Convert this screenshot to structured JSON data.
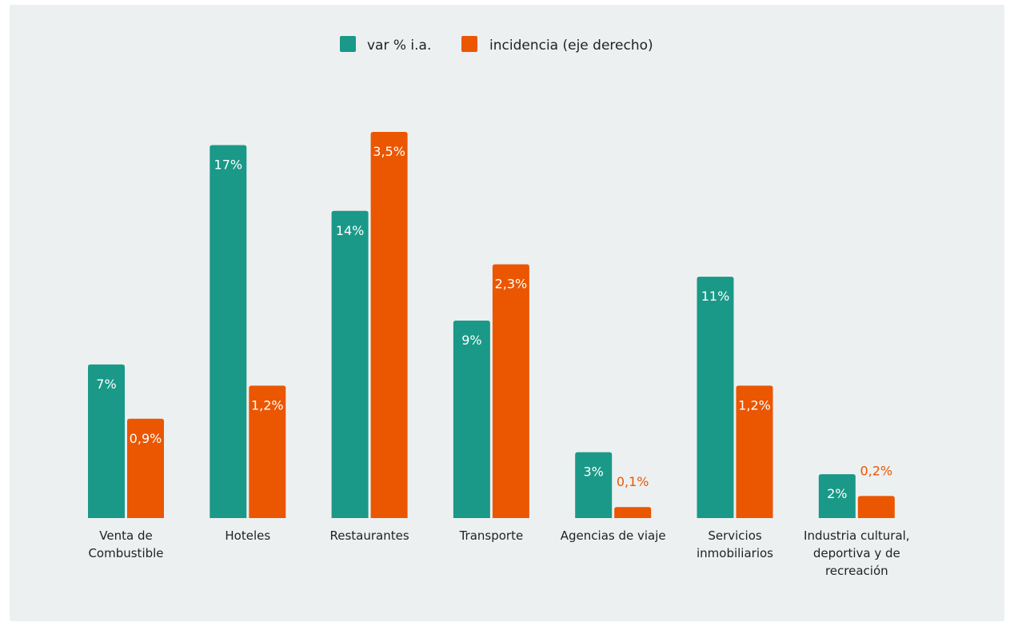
{
  "chart_data": {
    "type": "bar",
    "categories": [
      [
        "Venta de",
        "Combustible"
      ],
      [
        "Hoteles"
      ],
      [
        "Restaurantes"
      ],
      [
        "Transporte"
      ],
      [
        "Agencias de viaje"
      ],
      [
        "Servicios",
        "inmobiliarios"
      ],
      [
        "Industria cultural,",
        "deportiva y de",
        "recreación"
      ]
    ],
    "series": [
      {
        "name": "var % i.a.",
        "axis": "left",
        "color": "#1a9988",
        "values": [
          7,
          17,
          14,
          9,
          3,
          11,
          2
        ],
        "labels": [
          "7%",
          "17%",
          "14%",
          "9%",
          "3%",
          "11%",
          "2%"
        ]
      },
      {
        "name": "incidencia (eje derecho)",
        "axis": "right",
        "color": "#eb5600",
        "values": [
          0.9,
          1.2,
          3.5,
          2.3,
          0.1,
          1.2,
          0.2
        ],
        "labels": [
          "0,9%",
          "1,2%",
          "3,5%",
          "2,3%",
          "0,1%",
          "1,2%",
          "0,2%"
        ]
      }
    ],
    "ylim_left": [
      0,
      17.6
    ],
    "ylim_right": [
      0,
      3.5
    ],
    "grid": false,
    "legend_position": "top-center"
  }
}
